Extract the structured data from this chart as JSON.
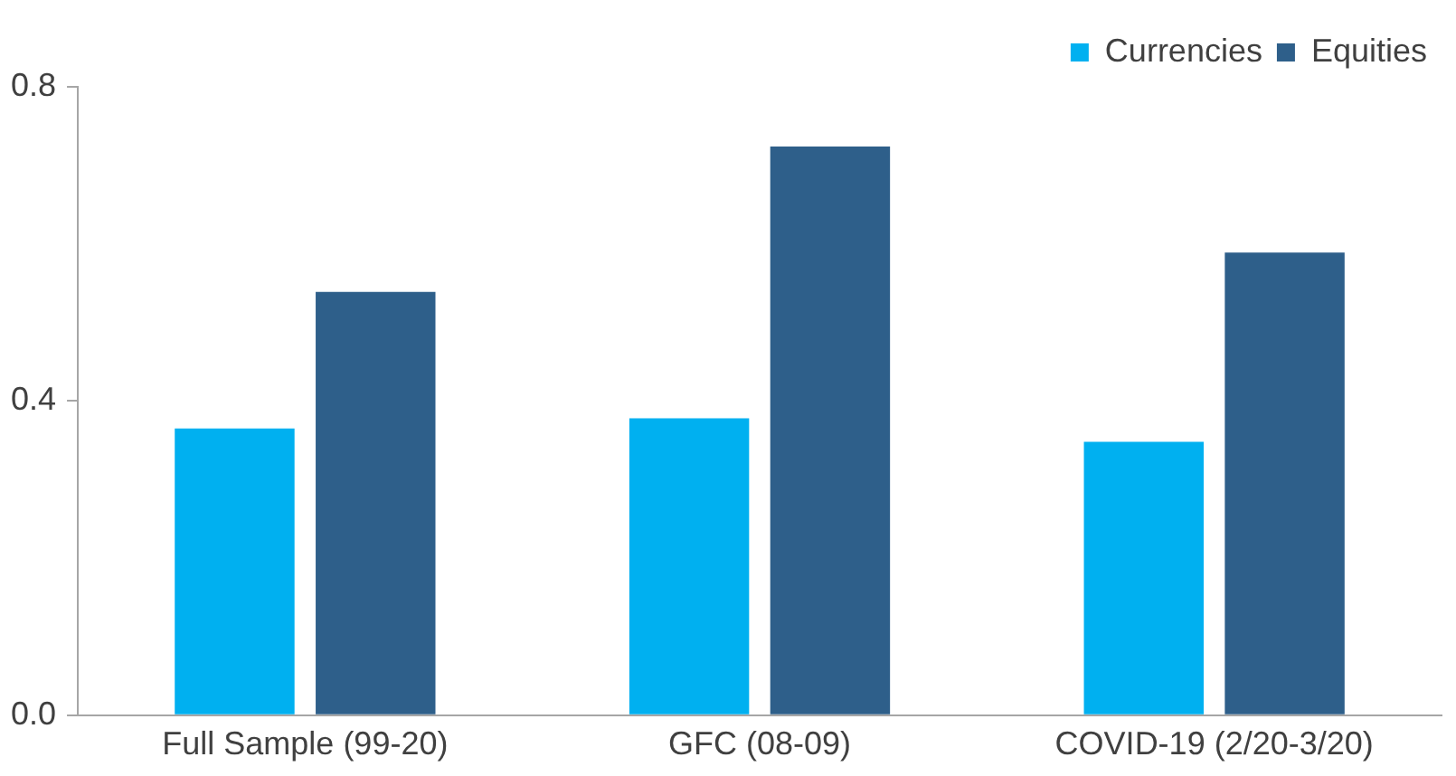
{
  "chart_data": {
    "type": "bar",
    "categories": [
      "Full Sample (99-20)",
      "GFC (08-09)",
      "COVID-19 (2/20-3/20)"
    ],
    "series": [
      {
        "name": "Currencies",
        "color": "#00b0f0",
        "values": [
          0.365,
          0.378,
          0.348
        ]
      },
      {
        "name": "Equities",
        "color": "#2e5f8a",
        "values": [
          0.539,
          0.724,
          0.589
        ]
      }
    ],
    "ylim": [
      0,
      0.8
    ],
    "yticks": [
      {
        "value": 0,
        "label": "0.0"
      },
      {
        "value": 0.4,
        "label": "0.4"
      },
      {
        "value": 0.8,
        "label": "0.8"
      }
    ],
    "grid": false,
    "legend": "top right"
  }
}
